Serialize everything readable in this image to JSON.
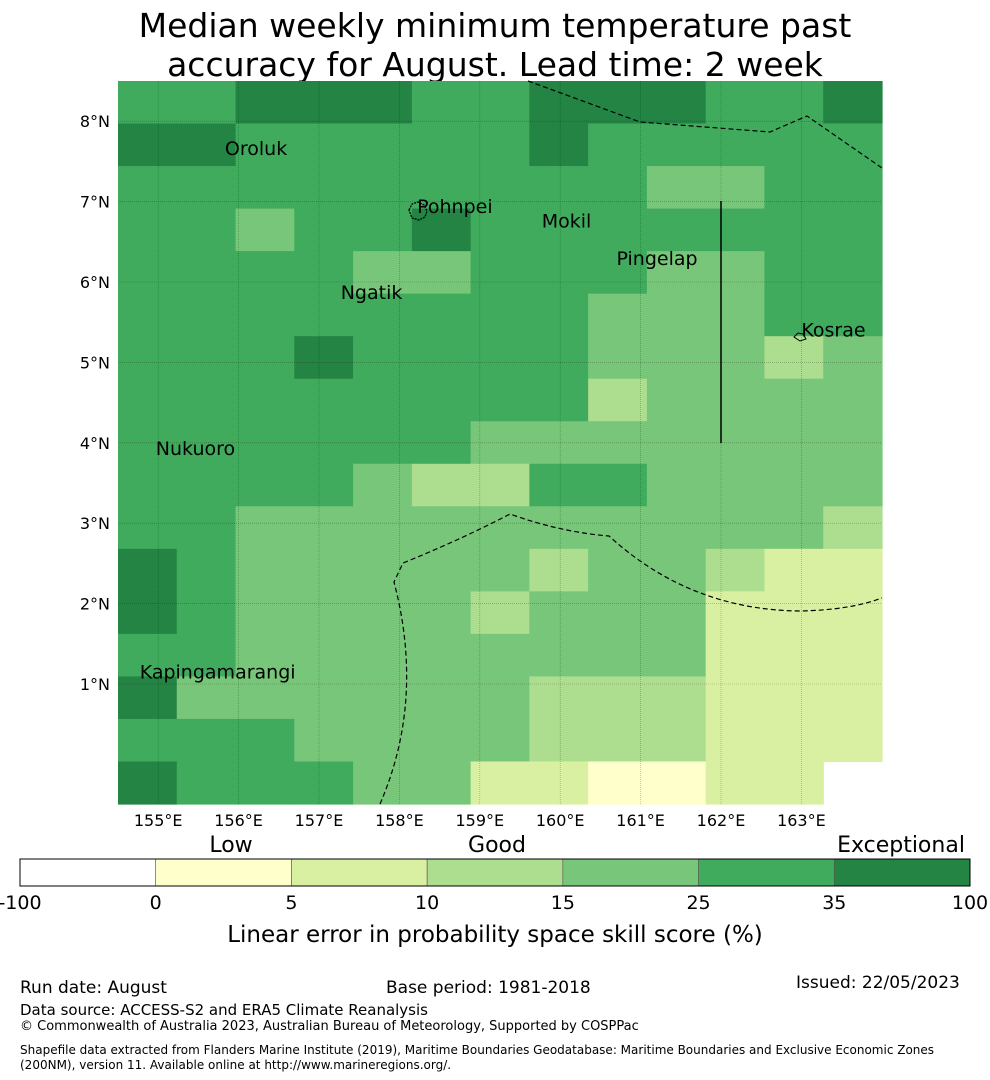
{
  "title": {
    "line1": "Median weekly minimum temperature past",
    "line2": "accuracy for August. Lead time: 2 week"
  },
  "map": {
    "lon_labels": [
      "155°E",
      "156°E",
      "157°E",
      "158°E",
      "159°E",
      "160°E",
      "161°E",
      "162°E",
      "163°E"
    ],
    "lat_labels": [
      "8°N",
      "7°N",
      "6°N",
      "5°N",
      "4°N",
      "3°N",
      "2°N",
      "1°N"
    ],
    "places": [
      {
        "name": "Oroluk",
        "lon": 155.83,
        "lat": 7.58
      },
      {
        "name": "Pohnpei",
        "lon": 158.22,
        "lat": 6.86
      },
      {
        "name": "Mokil",
        "lon": 159.77,
        "lat": 6.68
      },
      {
        "name": "Pingelap",
        "lon": 160.7,
        "lat": 6.21
      },
      {
        "name": "Ngatik",
        "lon": 157.27,
        "lat": 5.79
      },
      {
        "name": "Kosrae",
        "lon": 163.0,
        "lat": 5.32
      },
      {
        "name": "Nukuoro",
        "lon": 154.97,
        "lat": 3.85
      },
      {
        "name": "Kapingamarangi",
        "lon": 154.77,
        "lat": 1.07
      }
    ],
    "grid_rows": [
      "5566655666556",
      "6655555655555",
      "5555555554455",
      "5545565555555",
      "5555445554455",
      "5555555544455",
      "5556555544434",
      "5555555534444",
      "5555554444444",
      "5555433554444",
      "5544444444443",
      "6544444344322",
      "6544443444222",
      "5544444444222",
      "6444444333222",
      "5554444333222",
      "6555442211220"
    ]
  },
  "colorbar": {
    "category_labels": [
      "Low",
      "Good",
      "Exceptional"
    ],
    "tick_labels": [
      "-100",
      "0",
      "5",
      "10",
      "15",
      "25",
      "35",
      "100"
    ],
    "colors": [
      "#ffffff",
      "#ffffcc",
      "#d9f0a3",
      "#addd8e",
      "#78c679",
      "#41ab5d",
      "#238443"
    ],
    "label": "Linear error in probability space skill score (%)"
  },
  "footer": {
    "run_date": "Run date: August",
    "base_period": "Base period: 1981-2018",
    "issued": "Issued: 22/05/2023",
    "data_source": "Data source: ACCESS-S2 and ERA5 Climate Reanalysis",
    "copyright": "© Commonwealth of Australia 2023, Australian Bureau of Meteorology, Supported by COSPPac",
    "shapefile_line1": "Shapefile data extracted from Flanders Marine Institute (2019), Maritime Boundaries Geodatabase: Maritime Boundaries and Exclusive Economic Zones",
    "shapefile_line2": "(200NM), version 11. Available online at http://www.marineregions.org/."
  }
}
